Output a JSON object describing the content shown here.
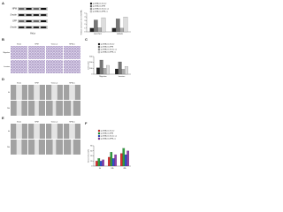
{
  "panels": {
    "labels": [
      "A",
      "B",
      "C",
      "D",
      "E",
      "F"
    ],
    "A": {
      "blot_labels": [
        "NPM",
        "β-actin",
        "GFP",
        "β-actin"
      ],
      "cell_line": "HeLa"
    },
    "B": {
      "columns": [
        "Vector",
        "NPM",
        "Vector+si",
        "NPM+si"
      ],
      "rows": [
        "Migration",
        "Invasion"
      ]
    },
    "D": {
      "columns": [
        "Vector",
        "NPM",
        "Vector+si",
        "NPM+si"
      ],
      "rows": [
        "0h",
        "24h"
      ]
    },
    "E": {
      "columns": [
        "Vector",
        "NPM",
        "Vector+si",
        "NPM+si"
      ],
      "rows": [
        "0h",
        "24h"
      ]
    }
  },
  "chart_data": [
    {
      "type": "bar",
      "ylabel": "Relative expression level of mRNA",
      "categories": [
        "SGC7901",
        "MKN45"
      ],
      "series": [
        {
          "name": "pcDNA3.1-Vector",
          "color": "#222222",
          "values": [
            1,
            1
          ]
        },
        {
          "name": "pcDNA3.1-NPM",
          "color": "#777777",
          "values": [
            3.2,
            3.5
          ]
        },
        {
          "name": "pcDNA3.1-Vector+si",
          "color": "#aaaaaa",
          "values": [
            1.1,
            1
          ]
        },
        {
          "name": "pcDNA3.1-NPM+si",
          "color": "#dddddd",
          "values": [
            3.8,
            4
          ]
        }
      ],
      "ylim": [
        0,
        5
      ],
      "yticks": [
        0,
        1,
        2,
        3,
        4,
        5
      ]
    },
    {
      "type": "bar",
      "ylabel": "Cell number",
      "categories": [
        "Migration",
        "Invasion"
      ],
      "series": [
        {
          "name": "pcDNA3.1-Vector",
          "color": "#222222",
          "values": [
            110,
            90
          ]
        },
        {
          "name": "pcDNA3.1-NPM",
          "color": "#777777",
          "values": [
            240,
            210
          ]
        },
        {
          "name": "pcDNA3.1-Vector+si",
          "color": "#aaaaaa",
          "values": [
            100,
            85
          ]
        },
        {
          "name": "pcDNA3.1-NPM+si",
          "color": "#dddddd",
          "values": [
            150,
            130
          ]
        }
      ],
      "ylim": [
        0,
        300
      ],
      "yticks": [
        0,
        100,
        200,
        300
      ]
    },
    {
      "type": "bar",
      "ylabel": "Wound closure (%)",
      "categories": [
        "0h",
        "24h",
        "48h"
      ],
      "series": [
        {
          "name": "pcDNA3.1-Vector",
          "color": "#e03030",
          "values": [
            20,
            35,
            50
          ]
        },
        {
          "name": "pcDNA3.1-NPM",
          "color": "#30a040",
          "values": [
            30,
            55,
            70
          ]
        },
        {
          "name": "pcDNA3.1-Vector+si",
          "color": "#3050d0",
          "values": [
            20,
            30,
            45
          ]
        },
        {
          "name": "pcDNA3.1-NPM+si",
          "color": "#9040b0",
          "values": [
            25,
            45,
            60
          ]
        }
      ],
      "ylim": [
        0,
        80
      ],
      "yticks": [
        0,
        20,
        40,
        60,
        80
      ]
    }
  ]
}
